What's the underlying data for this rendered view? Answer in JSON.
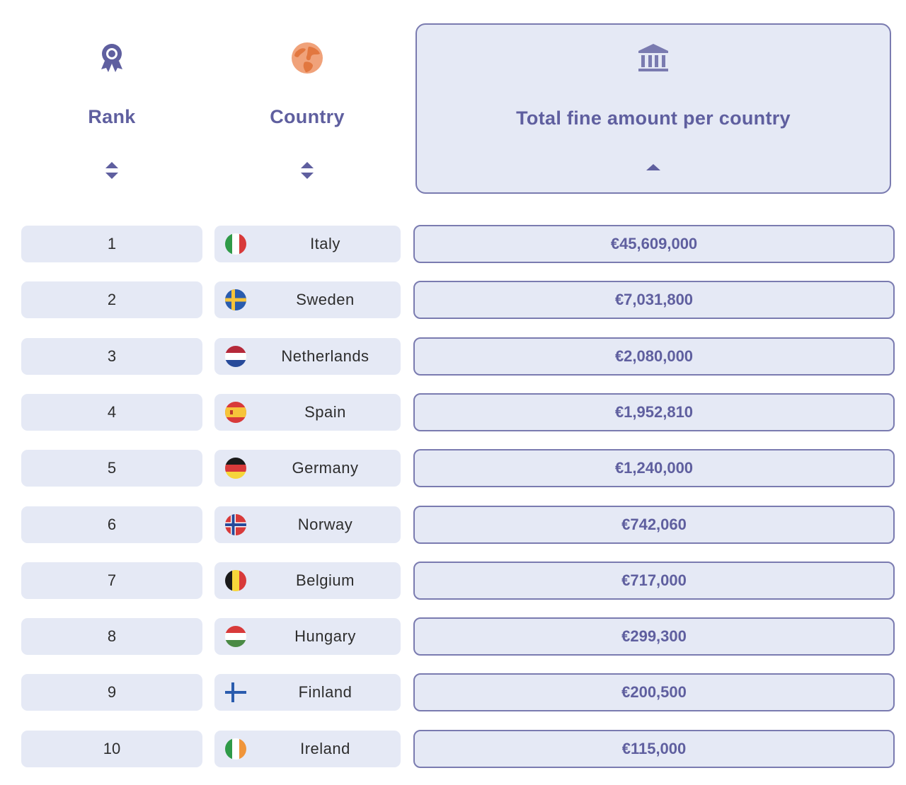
{
  "header": {
    "rank_label": "Rank",
    "country_label": "Country",
    "fine_label": "Total fine amount per country",
    "rank_icon": "award-ribbon-icon",
    "country_icon": "globe-icon",
    "fine_icon": "bank-building-icon"
  },
  "colors": {
    "accent": "#5f5f9f",
    "cell_background": "#e5e9f5",
    "border": "#7a7bb0",
    "text": "#2d2d2d"
  },
  "rows": [
    {
      "rank": "1",
      "country": "Italy",
      "flag": "italy-flag-icon",
      "amount": "€45,609,000"
    },
    {
      "rank": "2",
      "country": "Sweden",
      "flag": "sweden-flag-icon",
      "amount": "€7,031,800"
    },
    {
      "rank": "3",
      "country": "Netherlands",
      "flag": "netherlands-flag-icon",
      "amount": "€2,080,000"
    },
    {
      "rank": "4",
      "country": "Spain",
      "flag": "spain-flag-icon",
      "amount": "€1,952,810"
    },
    {
      "rank": "5",
      "country": "Germany",
      "flag": "germany-flag-icon",
      "amount": "€1,240,000"
    },
    {
      "rank": "6",
      "country": "Norway",
      "flag": "norway-flag-icon",
      "amount": "€742,060"
    },
    {
      "rank": "7",
      "country": "Belgium",
      "flag": "belgium-flag-icon",
      "amount": "€717,000"
    },
    {
      "rank": "8",
      "country": "Hungary",
      "flag": "hungary-flag-icon",
      "amount": "€299,300"
    },
    {
      "rank": "9",
      "country": "Finland",
      "flag": "finland-flag-icon",
      "amount": "€200,500"
    },
    {
      "rank": "10",
      "country": "Ireland",
      "flag": "ireland-flag-icon",
      "amount": "€115,000"
    }
  ]
}
